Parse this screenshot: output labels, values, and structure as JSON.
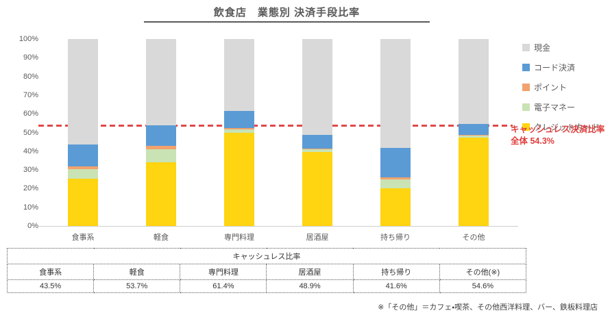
{
  "title": "飲食店　業態別 決済手段比率",
  "chart_data": {
    "type": "bar",
    "subtype": "stacked-100%",
    "title": "飲食店　業態別 決済手段比率",
    "unit": "%",
    "categories": [
      "食事系",
      "軽食",
      "専門料理",
      "居酒屋",
      "持ち帰り",
      "その他"
    ],
    "series": [
      {
        "name": "クレジットカード",
        "color": "#FFD410",
        "values": [
          25.3,
          34.2,
          50.0,
          39.4,
          20.0,
          47.2
        ]
      },
      {
        "name": "電子マネー",
        "color": "#C9E3B4",
        "values": [
          5.2,
          6.7,
          1.5,
          1.7,
          5.0,
          1.0
        ]
      },
      {
        "name": "ポイント",
        "color": "#F2A26E",
        "values": [
          1.2,
          1.8,
          1.0,
          0.4,
          1.0,
          0.4
        ]
      },
      {
        "name": "コード決済",
        "color": "#5B9BD5",
        "values": [
          11.8,
          11.0,
          8.9,
          7.4,
          15.6,
          6.0
        ]
      },
      {
        "name": "現金",
        "color": "#D9D9D9",
        "values": [
          56.5,
          46.3,
          38.6,
          51.1,
          58.4,
          45.4
        ]
      }
    ],
    "yticks": [
      "100%",
      "90%",
      "80%",
      "70%",
      "60%",
      "50%",
      "40%",
      "30%",
      "20%",
      "10%",
      "0%"
    ],
    "ylim": [
      0,
      100
    ],
    "grid": false,
    "legend_position": "right",
    "reference_line": {
      "value": 54.3,
      "color": "#E03C3C",
      "style": "dashed",
      "label_line1": "キャッシュレス決済比率",
      "label_line2": "全体 54.3%"
    }
  },
  "legend": {
    "items": [
      {
        "label": "現金",
        "color": "#D9D9D9"
      },
      {
        "label": "コード決済",
        "color": "#5B9BD5"
      },
      {
        "label": "ポイント",
        "color": "#F2A26E"
      },
      {
        "label": "電子マネー",
        "color": "#C9E3B4"
      },
      {
        "label": "クレジットカード",
        "color": "#FFD410"
      }
    ]
  },
  "summary_table": {
    "title": "キャッシュレス比率",
    "columns": [
      "食事系",
      "軽食",
      "専門料理",
      "居酒屋",
      "持ち帰り",
      "その他(※)"
    ],
    "values": [
      "43.5%",
      "53.7%",
      "61.4%",
      "48.9%",
      "41.6%",
      "54.6%"
    ]
  },
  "footnote": "※「その他」＝カフェ・喫茶、その他西洋料理、バー、鉄板料理店"
}
